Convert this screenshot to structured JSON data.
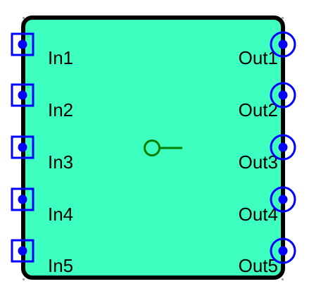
{
  "block": {
    "fill_color": "#3dffc0",
    "border_color": "#000000",
    "symbol_color": "#008000",
    "symbol_name": "output-connector-icon"
  },
  "inputs": [
    {
      "label": "In1",
      "marker": "square-port-icon",
      "color": "#0000ff"
    },
    {
      "label": "In2",
      "marker": "square-port-icon",
      "color": "#0000ff"
    },
    {
      "label": "In3",
      "marker": "square-port-icon",
      "color": "#0000ff"
    },
    {
      "label": "In4",
      "marker": "square-port-icon",
      "color": "#0000ff"
    },
    {
      "label": "In5",
      "marker": "square-port-icon",
      "color": "#0000ff"
    }
  ],
  "outputs": [
    {
      "label": "Out1",
      "marker": "circle-port-icon",
      "color": "#0000ff"
    },
    {
      "label": "Out2",
      "marker": "circle-port-icon",
      "color": "#0000ff"
    },
    {
      "label": "Out3",
      "marker": "circle-port-icon",
      "color": "#0000ff"
    },
    {
      "label": "Out4",
      "marker": "circle-port-icon",
      "color": "#0000ff"
    },
    {
      "label": "Out5",
      "marker": "circle-port-icon",
      "color": "#0000ff"
    }
  ]
}
